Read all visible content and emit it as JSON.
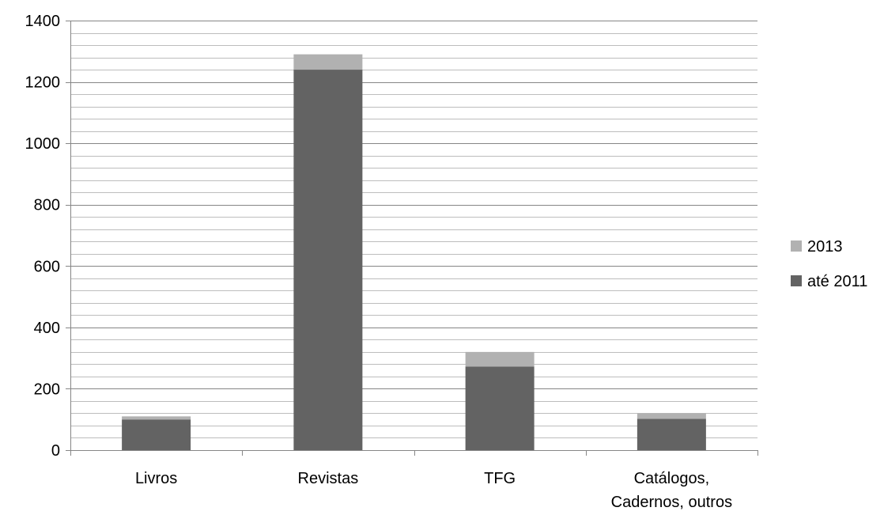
{
  "chart_data": {
    "type": "bar",
    "stacked": true,
    "categories": [
      [
        "Livros"
      ],
      [
        "Revistas"
      ],
      [
        "TFG"
      ],
      [
        "Catálogos,",
        "Cadernos, outros"
      ]
    ],
    "series": [
      {
        "name": "até 2011",
        "values": [
          100,
          1240,
          272,
          102
        ],
        "color": "#636363"
      },
      {
        "name": "2013",
        "values": [
          10,
          50,
          48,
          18
        ],
        "color": "#b1b1b1"
      }
    ],
    "ylim": [
      0,
      1400
    ],
    "major_tick_step": 200,
    "minor_tick_step": 40,
    "y_tick_labels": [
      "0",
      "200",
      "400",
      "600",
      "800",
      "1000",
      "1200",
      "1400"
    ],
    "legend_order": [
      "2013",
      "até 2011"
    ],
    "legend_position": "right",
    "grid": true,
    "major_grid_color": "#868686",
    "minor_grid_color": "#bdbdbd",
    "title": "",
    "xlabel": "",
    "ylabel": ""
  }
}
